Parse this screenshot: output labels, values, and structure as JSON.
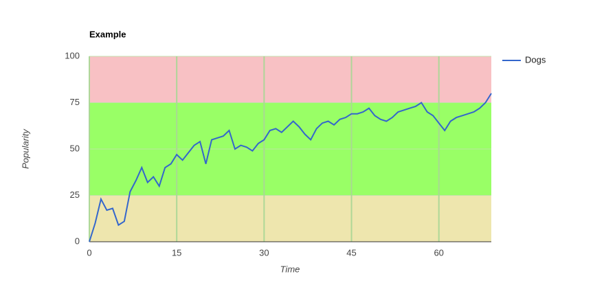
{
  "chart_data": {
    "type": "line",
    "title": "Example",
    "x_label": "Time",
    "y_label": "Popularity",
    "x": [
      0,
      1,
      2,
      3,
      4,
      5,
      6,
      7,
      8,
      9,
      10,
      11,
      12,
      13,
      14,
      15,
      16,
      17,
      18,
      19,
      20,
      21,
      22,
      23,
      24,
      25,
      26,
      27,
      28,
      29,
      30,
      31,
      32,
      33,
      34,
      35,
      36,
      37,
      38,
      39,
      40,
      41,
      42,
      43,
      44,
      45,
      46,
      47,
      48,
      49,
      50,
      51,
      52,
      53,
      54,
      55,
      56,
      57,
      58,
      59,
      60,
      61,
      62,
      63,
      64,
      65,
      66,
      67,
      68,
      69
    ],
    "series": [
      {
        "name": "Dogs",
        "color": "#3366cc",
        "values": [
          0,
          10,
          23,
          17,
          18,
          9,
          11,
          27,
          33,
          40,
          32,
          35,
          30,
          40,
          42,
          47,
          44,
          48,
          52,
          54,
          42,
          55,
          56,
          57,
          60,
          50,
          52,
          51,
          49,
          53,
          55,
          60,
          61,
          59,
          62,
          65,
          62,
          58,
          55,
          61,
          64,
          65,
          63,
          66,
          67,
          69,
          69,
          70,
          72,
          68,
          66,
          65,
          67,
          70,
          71,
          72,
          73,
          75,
          70,
          68,
          64,
          60,
          65,
          67,
          68,
          69,
          70,
          72,
          75,
          80
        ]
      }
    ],
    "xlim": [
      0,
      69
    ],
    "xticks": [
      0,
      15,
      30,
      45,
      60
    ],
    "ylim": [
      0,
      100
    ],
    "yticks": [
      0,
      25,
      50,
      75,
      100
    ],
    "grid": true,
    "legend": "right",
    "bands": [
      {
        "from": 0,
        "to": 25,
        "color": "#eee6ae"
      },
      {
        "from": 25,
        "to": 75,
        "color": "#99ff66"
      },
      {
        "from": 75,
        "to": 100,
        "color": "#f8c1c4"
      }
    ]
  }
}
